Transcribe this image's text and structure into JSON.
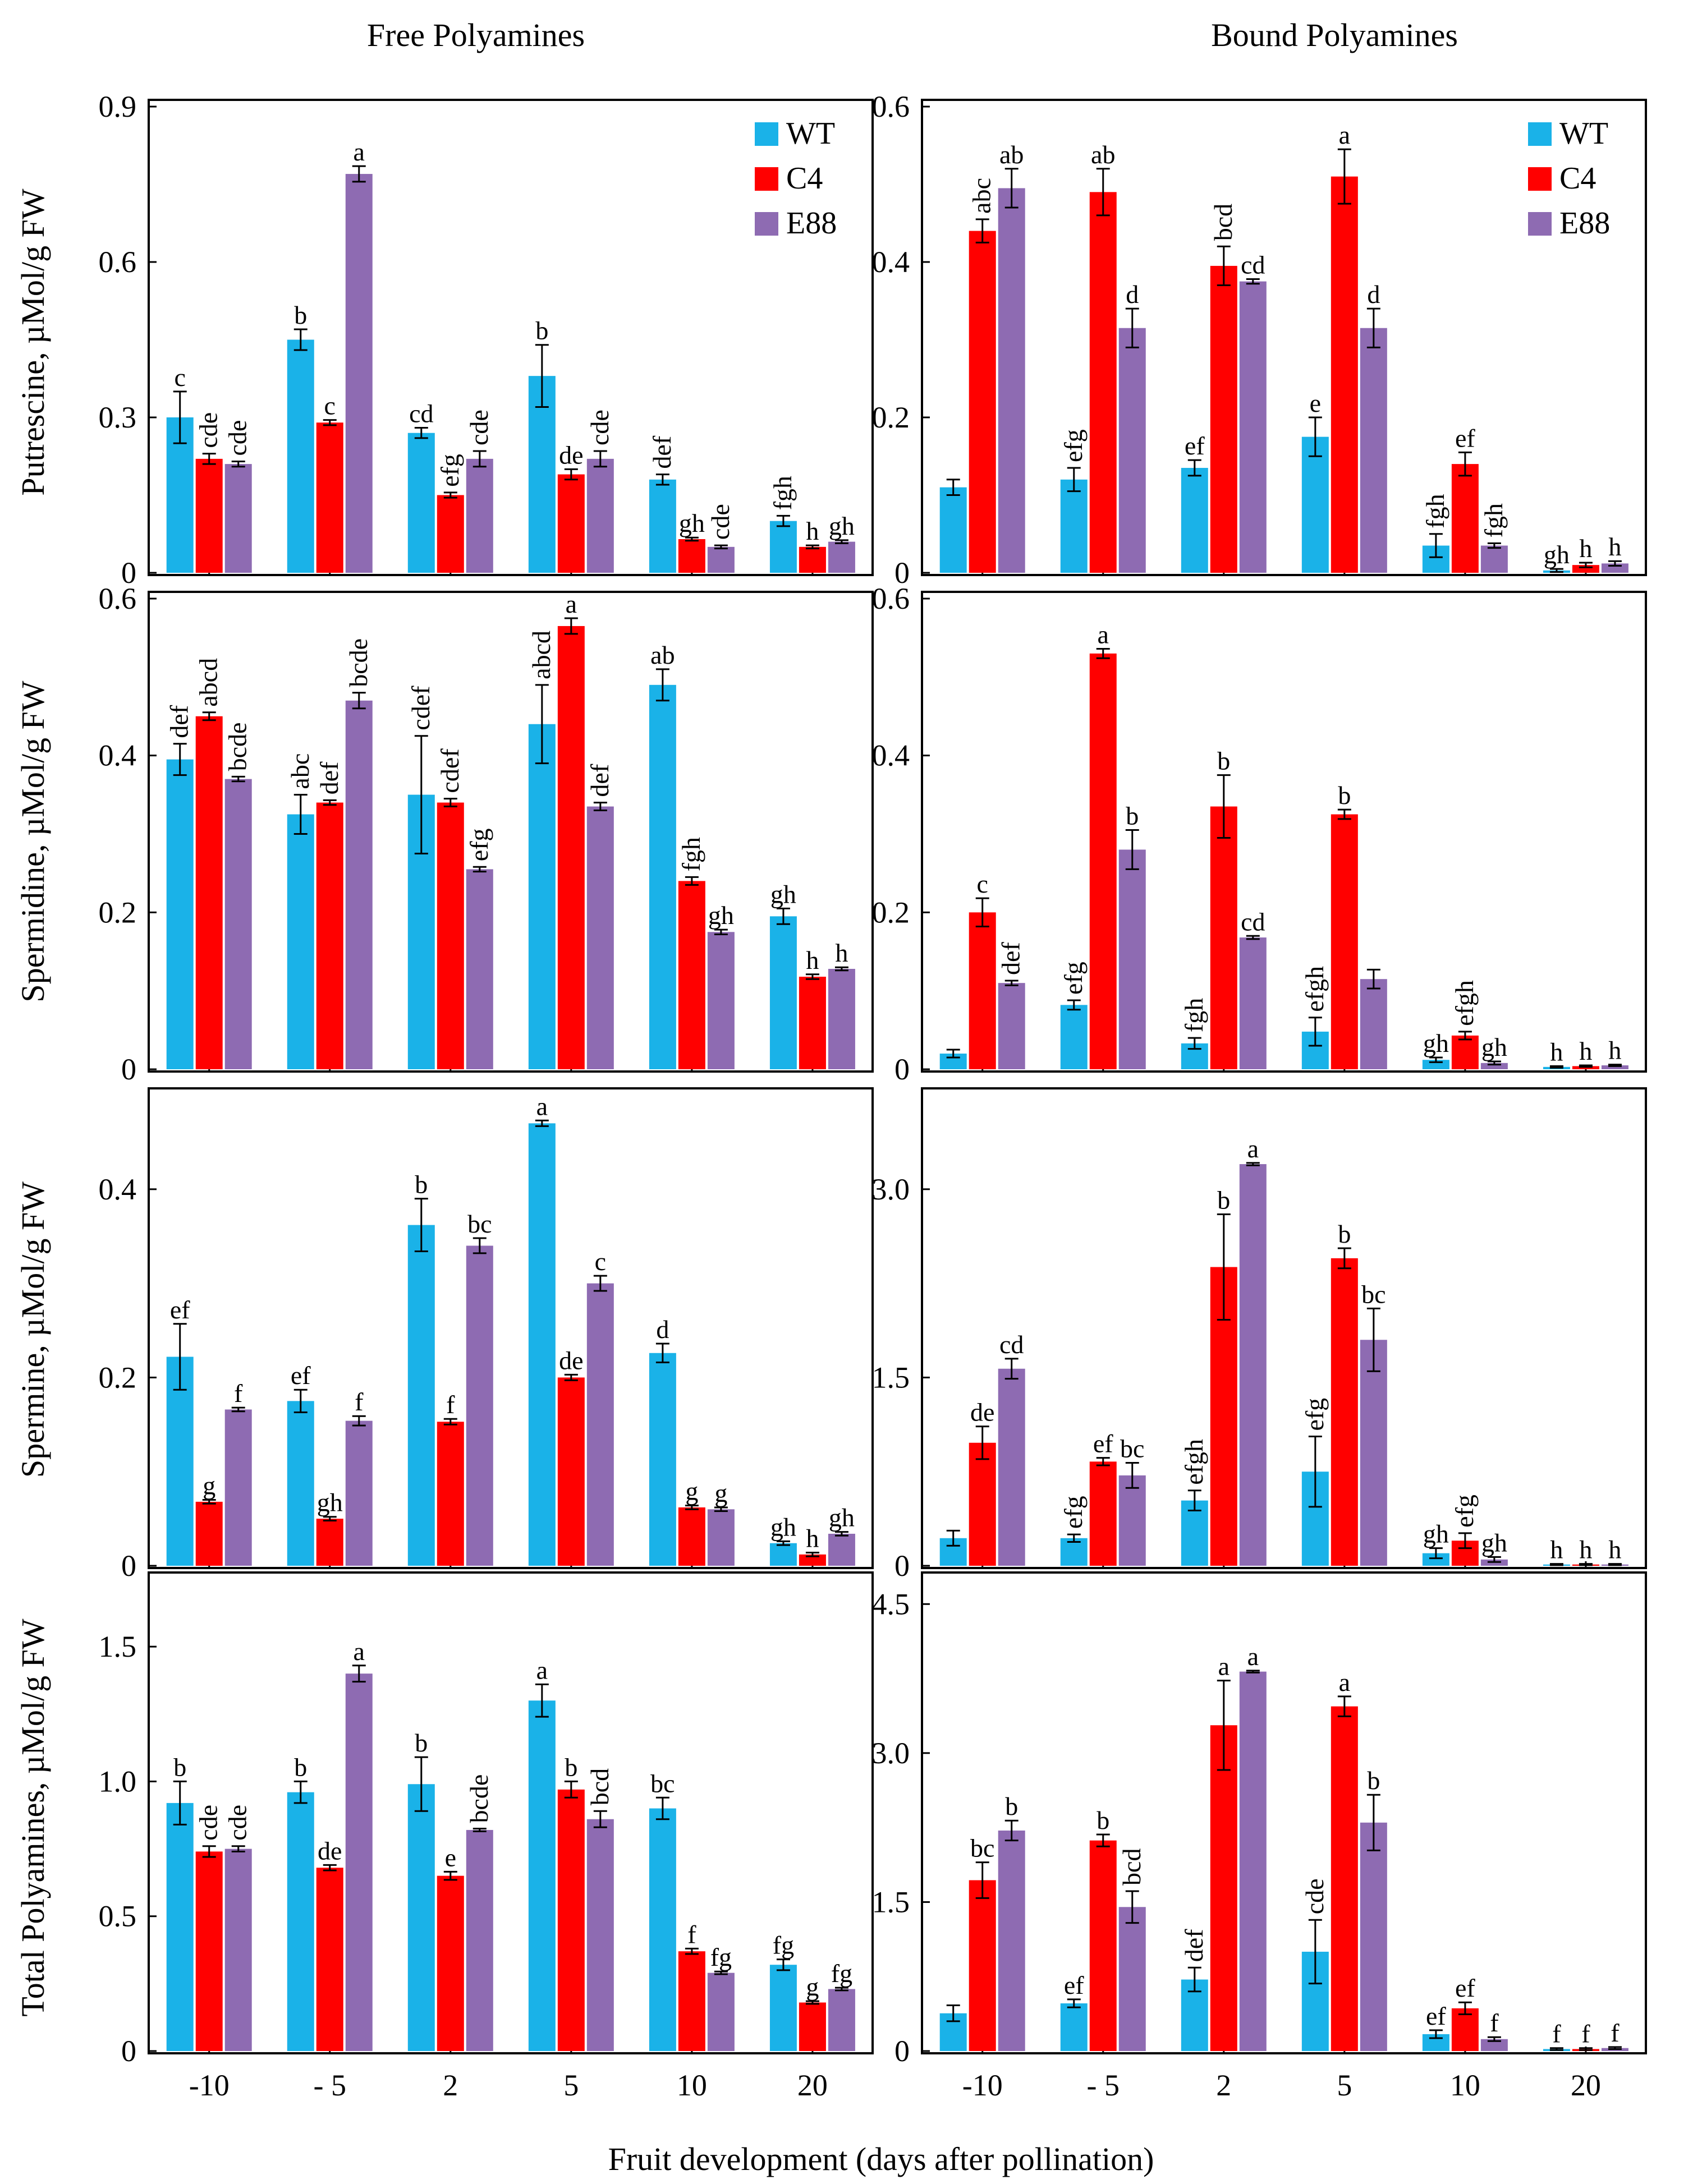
{
  "figure": {
    "col_titles": [
      "Free Polyamines",
      "Bound Polyamines"
    ],
    "x_axis_title": "Fruit development (days after pollination)",
    "row_labels": [
      "Putrescine,  µMol/g FW",
      "Spermidine, µMol/g FW",
      "Spermine, µMol/g FW",
      "Total Polyamines, µMol/g FW"
    ]
  },
  "legend": [
    {
      "name": "WT",
      "color": "#1ab2e8"
    },
    {
      "name": "C4",
      "color": "#ff0000"
    },
    {
      "name": "E88",
      "color": "#8e6bb2"
    }
  ],
  "chart_data": [
    {
      "type": "bar",
      "panel": "Putrescine - Free",
      "categories": [
        "-10",
        "- 5",
        "2",
        "5",
        "10",
        "20"
      ],
      "x_tick_labels": [
        "-10",
        "- 5",
        "2",
        "5",
        "10",
        "20"
      ],
      "ylabel": "Putrescine,  µMol/g FW",
      "ylim": [
        0,
        0.9
      ],
      "ytick_values": [
        0,
        0.3,
        0.6,
        0.9
      ],
      "ytick_labels": [
        "0",
        "0.3",
        "0.6",
        "0.9"
      ],
      "legend": [
        "WT",
        "C4",
        "E88"
      ],
      "series": [
        {
          "name": "WT",
          "values": [
            0.3,
            0.45,
            0.27,
            0.38,
            0.18,
            0.1
          ],
          "errors": [
            0.05,
            0.02,
            0.01,
            0.06,
            0.01,
            0.01
          ],
          "letters": [
            "c",
            "b",
            "cd",
            "b",
            "def",
            "fgh"
          ]
        },
        {
          "name": "C4",
          "values": [
            0.22,
            0.29,
            0.15,
            0.19,
            0.065,
            0.05
          ],
          "errors": [
            0.01,
            0.005,
            0.005,
            0.01,
            0.003,
            0.003
          ],
          "letters": [
            "cde",
            "c",
            "efg",
            "de",
            "gh",
            "h"
          ]
        },
        {
          "name": "E88",
          "values": [
            0.21,
            0.77,
            0.22,
            0.22,
            0.05,
            0.06
          ],
          "errors": [
            0.005,
            0.015,
            0.015,
            0.015,
            0.003,
            0.003
          ],
          "letters": [
            "cde",
            "a",
            "cde",
            "cde",
            "cde",
            "gh"
          ]
        }
      ]
    },
    {
      "type": "bar",
      "panel": "Putrescine - Bound",
      "categories": [
        "-10",
        "- 5",
        "2",
        "5",
        "10",
        "20"
      ],
      "x_tick_labels": [
        "-10",
        "- 5",
        "2",
        "5",
        "10",
        "20"
      ],
      "ylabel": "Putrescine,  µMol/g FW",
      "ylim": [
        0,
        0.6
      ],
      "ytick_values": [
        0,
        0.2,
        0.4,
        0.6
      ],
      "ytick_labels": [
        "0",
        "0.2",
        "0.4",
        "0.6"
      ],
      "legend": [
        "WT",
        "C4",
        "E88"
      ],
      "series": [
        {
          "name": "WT",
          "values": [
            0.11,
            0.12,
            0.135,
            0.175,
            0.035,
            0.003
          ],
          "errors": [
            0.01,
            0.015,
            0.01,
            0.025,
            0.015,
            0.002
          ],
          "letters": [
            "",
            "efg",
            "ef",
            "e",
            "fgh",
            "gh"
          ]
        },
        {
          "name": "C4",
          "values": [
            0.44,
            0.49,
            0.395,
            0.51,
            0.14,
            0.01
          ],
          "errors": [
            0.015,
            0.03,
            0.025,
            0.035,
            0.015,
            0.003
          ],
          "letters": [
            "abc",
            "ab",
            "bcd",
            "a",
            "ef",
            "h"
          ]
        },
        {
          "name": "E88",
          "values": [
            0.495,
            0.315,
            0.375,
            0.315,
            0.035,
            0.012
          ],
          "errors": [
            0.025,
            0.025,
            0.003,
            0.025,
            0.003,
            0.003
          ],
          "letters": [
            "ab",
            "d",
            "cd",
            "d",
            "fgh",
            "h"
          ]
        }
      ]
    },
    {
      "type": "bar",
      "panel": "Spermidine - Free",
      "categories": [
        "-10",
        "- 5",
        "2",
        "5",
        "10",
        "20"
      ],
      "x_tick_labels": [
        "-10",
        "- 5",
        "2",
        "5",
        "10",
        "20"
      ],
      "ylabel": "Spermidine, µMol/g FW",
      "ylim": [
        0,
        0.6
      ],
      "ytick_values": [
        0,
        0.2,
        0.4,
        0.6
      ],
      "ytick_labels": [
        "0",
        "0.2",
        "0.4",
        "0.6"
      ],
      "legend": [
        "WT",
        "C4",
        "E88"
      ],
      "series": [
        {
          "name": "WT",
          "values": [
            0.395,
            0.325,
            0.35,
            0.44,
            0.49,
            0.195
          ],
          "errors": [
            0.02,
            0.025,
            0.075,
            0.05,
            0.02,
            0.01
          ],
          "letters": [
            "def",
            "abc",
            "cdef",
            "abcd",
            "ab",
            "gh"
          ]
        },
        {
          "name": "C4",
          "values": [
            0.45,
            0.34,
            0.34,
            0.565,
            0.24,
            0.118
          ],
          "errors": [
            0.005,
            0.003,
            0.005,
            0.01,
            0.005,
            0.003
          ],
          "letters": [
            "abcd",
            "def",
            "cdef",
            "a",
            "fgh",
            "h"
          ]
        },
        {
          "name": "E88",
          "values": [
            0.37,
            0.47,
            0.255,
            0.335,
            0.175,
            0.128
          ],
          "errors": [
            0.003,
            0.01,
            0.003,
            0.005,
            0.003,
            0.002
          ],
          "letters": [
            "bcde",
            "bcde",
            "efg",
            "def",
            "gh",
            "h"
          ]
        }
      ]
    },
    {
      "type": "bar",
      "panel": "Spermidine - Bound",
      "categories": [
        "-10",
        "- 5",
        "2",
        "5",
        "10",
        "20"
      ],
      "x_tick_labels": [
        "-10",
        "- 5",
        "2",
        "5",
        "10",
        "20"
      ],
      "ylabel": "Spermidine, µMol/g FW",
      "ylim": [
        0,
        0.6
      ],
      "ytick_values": [
        0,
        0.2,
        0.4,
        0.6
      ],
      "ytick_labels": [
        "0",
        "0.2",
        "0.4",
        "0.6"
      ],
      "legend": [
        "WT",
        "C4",
        "E88"
      ],
      "series": [
        {
          "name": "WT",
          "values": [
            0.02,
            0.082,
            0.033,
            0.048,
            0.012,
            0.003
          ],
          "errors": [
            0.005,
            0.006,
            0.007,
            0.018,
            0.003,
            0.001
          ],
          "letters": [
            "",
            "efg",
            "fgh",
            "efgh",
            "gh",
            "h"
          ]
        },
        {
          "name": "C4",
          "values": [
            0.2,
            0.53,
            0.335,
            0.325,
            0.043,
            0.004
          ],
          "errors": [
            0.018,
            0.006,
            0.04,
            0.006,
            0.005,
            0.001
          ],
          "letters": [
            "c",
            "a",
            "b",
            "b",
            "efgh",
            "h"
          ]
        },
        {
          "name": "E88",
          "values": [
            0.11,
            0.28,
            0.168,
            0.115,
            0.008,
            0.005
          ],
          "errors": [
            0.003,
            0.025,
            0.002,
            0.012,
            0.002,
            0.001
          ],
          "letters": [
            "def",
            "b",
            "cd",
            "",
            "gh",
            "h"
          ]
        }
      ]
    },
    {
      "type": "bar",
      "panel": "Spermine - Free",
      "categories": [
        "-10",
        "- 5",
        "2",
        "5",
        "10",
        "20"
      ],
      "x_tick_labels": [
        "-10",
        "- 5",
        "2",
        "5",
        "10",
        "20"
      ],
      "ylabel": "Spermine, µMol/g FW",
      "ylim": [
        0,
        0.5
      ],
      "ytick_values": [
        0,
        0.2,
        0.4
      ],
      "ytick_labels": [
        "0",
        "0.2",
        "0.4"
      ],
      "legend": [
        "WT",
        "C4",
        "E88"
      ],
      "series": [
        {
          "name": "WT",
          "values": [
            0.222,
            0.175,
            0.362,
            0.47,
            0.226,
            0.024
          ],
          "errors": [
            0.035,
            0.012,
            0.028,
            0.003,
            0.01,
            0.002
          ],
          "letters": [
            "ef",
            "ef",
            "b",
            "a",
            "d",
            "gh"
          ]
        },
        {
          "name": "C4",
          "values": [
            0.068,
            0.05,
            0.153,
            0.2,
            0.062,
            0.012
          ],
          "errors": [
            0.002,
            0.002,
            0.003,
            0.003,
            0.002,
            0.002
          ],
          "letters": [
            "g",
            "gh",
            "f",
            "de",
            "g",
            "h"
          ]
        },
        {
          "name": "E88",
          "values": [
            0.166,
            0.154,
            0.34,
            0.3,
            0.06,
            0.034
          ],
          "errors": [
            0.002,
            0.005,
            0.008,
            0.008,
            0.002,
            0.002
          ],
          "letters": [
            "f",
            "f",
            "bc",
            "c",
            "g",
            "gh"
          ]
        }
      ]
    },
    {
      "type": "bar",
      "panel": "Spermine - Bound",
      "categories": [
        "-10",
        "- 5",
        "2",
        "5",
        "10",
        "20"
      ],
      "x_tick_labels": [
        "-10",
        "- 5",
        "2",
        "5",
        "10",
        "20"
      ],
      "ylabel": "Spermine, µMol/g FW",
      "ylim": [
        0,
        3.75
      ],
      "ytick_values": [
        0,
        1.5,
        3.0
      ],
      "ytick_labels": [
        "0",
        "1.5",
        "3.0"
      ],
      "legend": [
        "WT",
        "C4",
        "E88"
      ],
      "series": [
        {
          "name": "WT",
          "values": [
            0.22,
            0.22,
            0.52,
            0.75,
            0.1,
            0.01
          ],
          "errors": [
            0.06,
            0.03,
            0.08,
            0.28,
            0.04,
            0.005
          ],
          "letters": [
            "",
            "efg",
            "efgh",
            "efg",
            "gh",
            "h"
          ]
        },
        {
          "name": "C4",
          "values": [
            0.98,
            0.83,
            2.38,
            2.45,
            0.2,
            0.01
          ],
          "errors": [
            0.13,
            0.03,
            0.42,
            0.08,
            0.06,
            0.005
          ],
          "letters": [
            "de",
            "ef",
            "b",
            "b",
            "efg",
            "h"
          ]
        },
        {
          "name": "E88",
          "values": [
            1.57,
            0.72,
            3.2,
            1.8,
            0.05,
            0.01
          ],
          "errors": [
            0.08,
            0.1,
            0.01,
            0.25,
            0.02,
            0.005
          ],
          "letters": [
            "cd",
            "bc",
            "a",
            "bc",
            "gh",
            "h"
          ]
        }
      ]
    },
    {
      "type": "bar",
      "panel": "Total Polyamines - Free",
      "categories": [
        "-10",
        "- 5",
        "2",
        "5",
        "10",
        "20"
      ],
      "x_tick_labels": [
        "-10",
        "- 5",
        "2",
        "5",
        "10",
        "20"
      ],
      "ylabel": "Total Polyamines, µMol/g FW",
      "ylim": [
        0,
        1.75
      ],
      "ytick_values": [
        0,
        0.5,
        1.0,
        1.5
      ],
      "ytick_labels": [
        "0",
        "0.5",
        "1.0",
        "1.5"
      ],
      "legend": [
        "WT",
        "C4",
        "E88"
      ],
      "series": [
        {
          "name": "WT",
          "values": [
            0.92,
            0.96,
            0.99,
            1.3,
            0.9,
            0.32
          ],
          "errors": [
            0.08,
            0.04,
            0.1,
            0.06,
            0.04,
            0.02
          ],
          "letters": [
            "b",
            "b",
            "b",
            "a",
            "bc",
            "fg"
          ]
        },
        {
          "name": "C4",
          "values": [
            0.74,
            0.68,
            0.65,
            0.97,
            0.37,
            0.18
          ],
          "errors": [
            0.02,
            0.01,
            0.015,
            0.03,
            0.01,
            0.005
          ],
          "letters": [
            "cde",
            "de",
            "e",
            "b",
            "f",
            "g"
          ]
        },
        {
          "name": "E88",
          "values": [
            0.75,
            1.4,
            0.82,
            0.86,
            0.29,
            0.23
          ],
          "errors": [
            0.01,
            0.03,
            0.005,
            0.03,
            0.005,
            0.005
          ],
          "letters": [
            "cde",
            "a",
            "bcde",
            "bcd",
            "fg",
            "fg"
          ]
        }
      ]
    },
    {
      "type": "bar",
      "panel": "Total Polyamines - Bound",
      "categories": [
        "-10",
        "- 5",
        "2",
        "5",
        "10",
        "20"
      ],
      "x_tick_labels": [
        "-10",
        "- 5",
        "2",
        "5",
        "10",
        "20"
      ],
      "ylabel": "Total Polyamines, µMol/g FW",
      "ylim": [
        0,
        4.75
      ],
      "ytick_values": [
        0,
        1.5,
        3.0,
        4.5
      ],
      "ytick_labels": [
        "0",
        "1.5",
        "3.0",
        "4.5"
      ],
      "legend": [
        "WT",
        "C4",
        "E88"
      ],
      "series": [
        {
          "name": "WT",
          "values": [
            0.38,
            0.48,
            0.72,
            1.0,
            0.17,
            0.02
          ],
          "errors": [
            0.08,
            0.04,
            0.12,
            0.32,
            0.04,
            0.01
          ],
          "letters": [
            "",
            "ef",
            "def",
            "cde",
            "ef",
            "f"
          ]
        },
        {
          "name": "C4",
          "values": [
            1.72,
            2.12,
            3.28,
            3.47,
            0.43,
            0.02
          ],
          "errors": [
            0.18,
            0.06,
            0.45,
            0.1,
            0.06,
            0.01
          ],
          "letters": [
            "bc",
            "b",
            "a",
            "a",
            "ef",
            "f"
          ]
        },
        {
          "name": "E88",
          "values": [
            2.22,
            1.45,
            3.82,
            2.3,
            0.12,
            0.03
          ],
          "errors": [
            0.1,
            0.16,
            0.01,
            0.28,
            0.02,
            0.01
          ],
          "letters": [
            "b",
            "bcd",
            "a",
            "b",
            "f",
            "f"
          ]
        }
      ]
    }
  ]
}
